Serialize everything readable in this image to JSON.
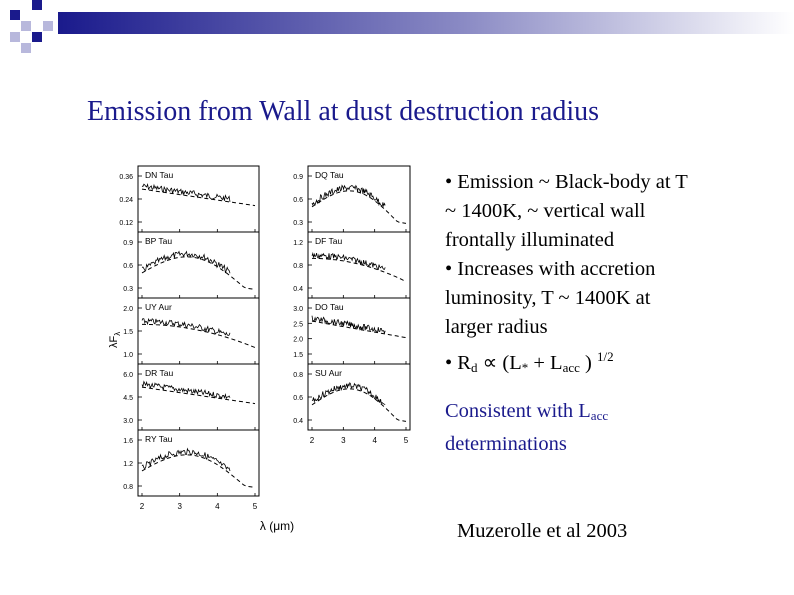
{
  "slide": {
    "title": "Emission from Wall at dust destruction radius",
    "bullets": {
      "b1_l1": "• Emission ~ Black-body at T",
      "b1_l2": "~ 1400K, ~ vertical wall",
      "b1_l3": "frontally illuminated",
      "b2_l1": "• Increases with accretion",
      "b2_l2": "luminosity, T ~ 1400K at",
      "b2_l3": "larger radius",
      "b3_pre": "• R",
      "b3_rsub": "d",
      "b3_mid": " ∝ (L",
      "b3_star": "*",
      "b3_plus": " + L",
      "b3_accsub": "acc",
      "b3_close": " )",
      "b3_sup": "1/2"
    },
    "consistent": {
      "pre": "Consistent with L",
      "sub": "acc",
      "line2": "determinations"
    },
    "citation": "Muzerolle et al 2003"
  },
  "colors": {
    "title": "#1a1a8c",
    "text": "#000000",
    "deco_blue": "#1a1a8c"
  },
  "figure": {
    "ylabel": "λF",
    "ylabel_sub": "λ",
    "xlabel": "λ (μm)",
    "left_x_ticks": [
      "2",
      "3",
      "4",
      "5"
    ],
    "right_x_ticks": [
      "2",
      "3",
      "4",
      "5"
    ],
    "left_panels": [
      {
        "name": "DN Tau",
        "ticks": [
          "0.36",
          "0.24",
          "0.12"
        ]
      },
      {
        "name": "BP Tau",
        "ticks": [
          "0.9",
          "0.6",
          "0.3"
        ]
      },
      {
        "name": "UY Aur",
        "ticks": [
          "2.0",
          "1.5",
          "1.0"
        ]
      },
      {
        "name": "DR Tau",
        "ticks": [
          "6.0",
          "4.5",
          "3.0"
        ]
      },
      {
        "name": "RY Tau",
        "ticks": [
          "1.6",
          "1.2",
          "0.8"
        ]
      }
    ],
    "right_panels": [
      {
        "name": "DQ Tau",
        "ticks": [
          "0.9",
          "0.6",
          "0.3"
        ]
      },
      {
        "name": "DF Tau",
        "ticks": [
          "1.2",
          "0.8",
          "0.4"
        ]
      },
      {
        "name": "DO Tau",
        "ticks": [
          "3.0",
          "2.5",
          "2.0",
          "1.5"
        ]
      },
      {
        "name": "SU Aur",
        "ticks": [
          "0.8",
          "0.6",
          "0.4"
        ]
      }
    ]
  }
}
